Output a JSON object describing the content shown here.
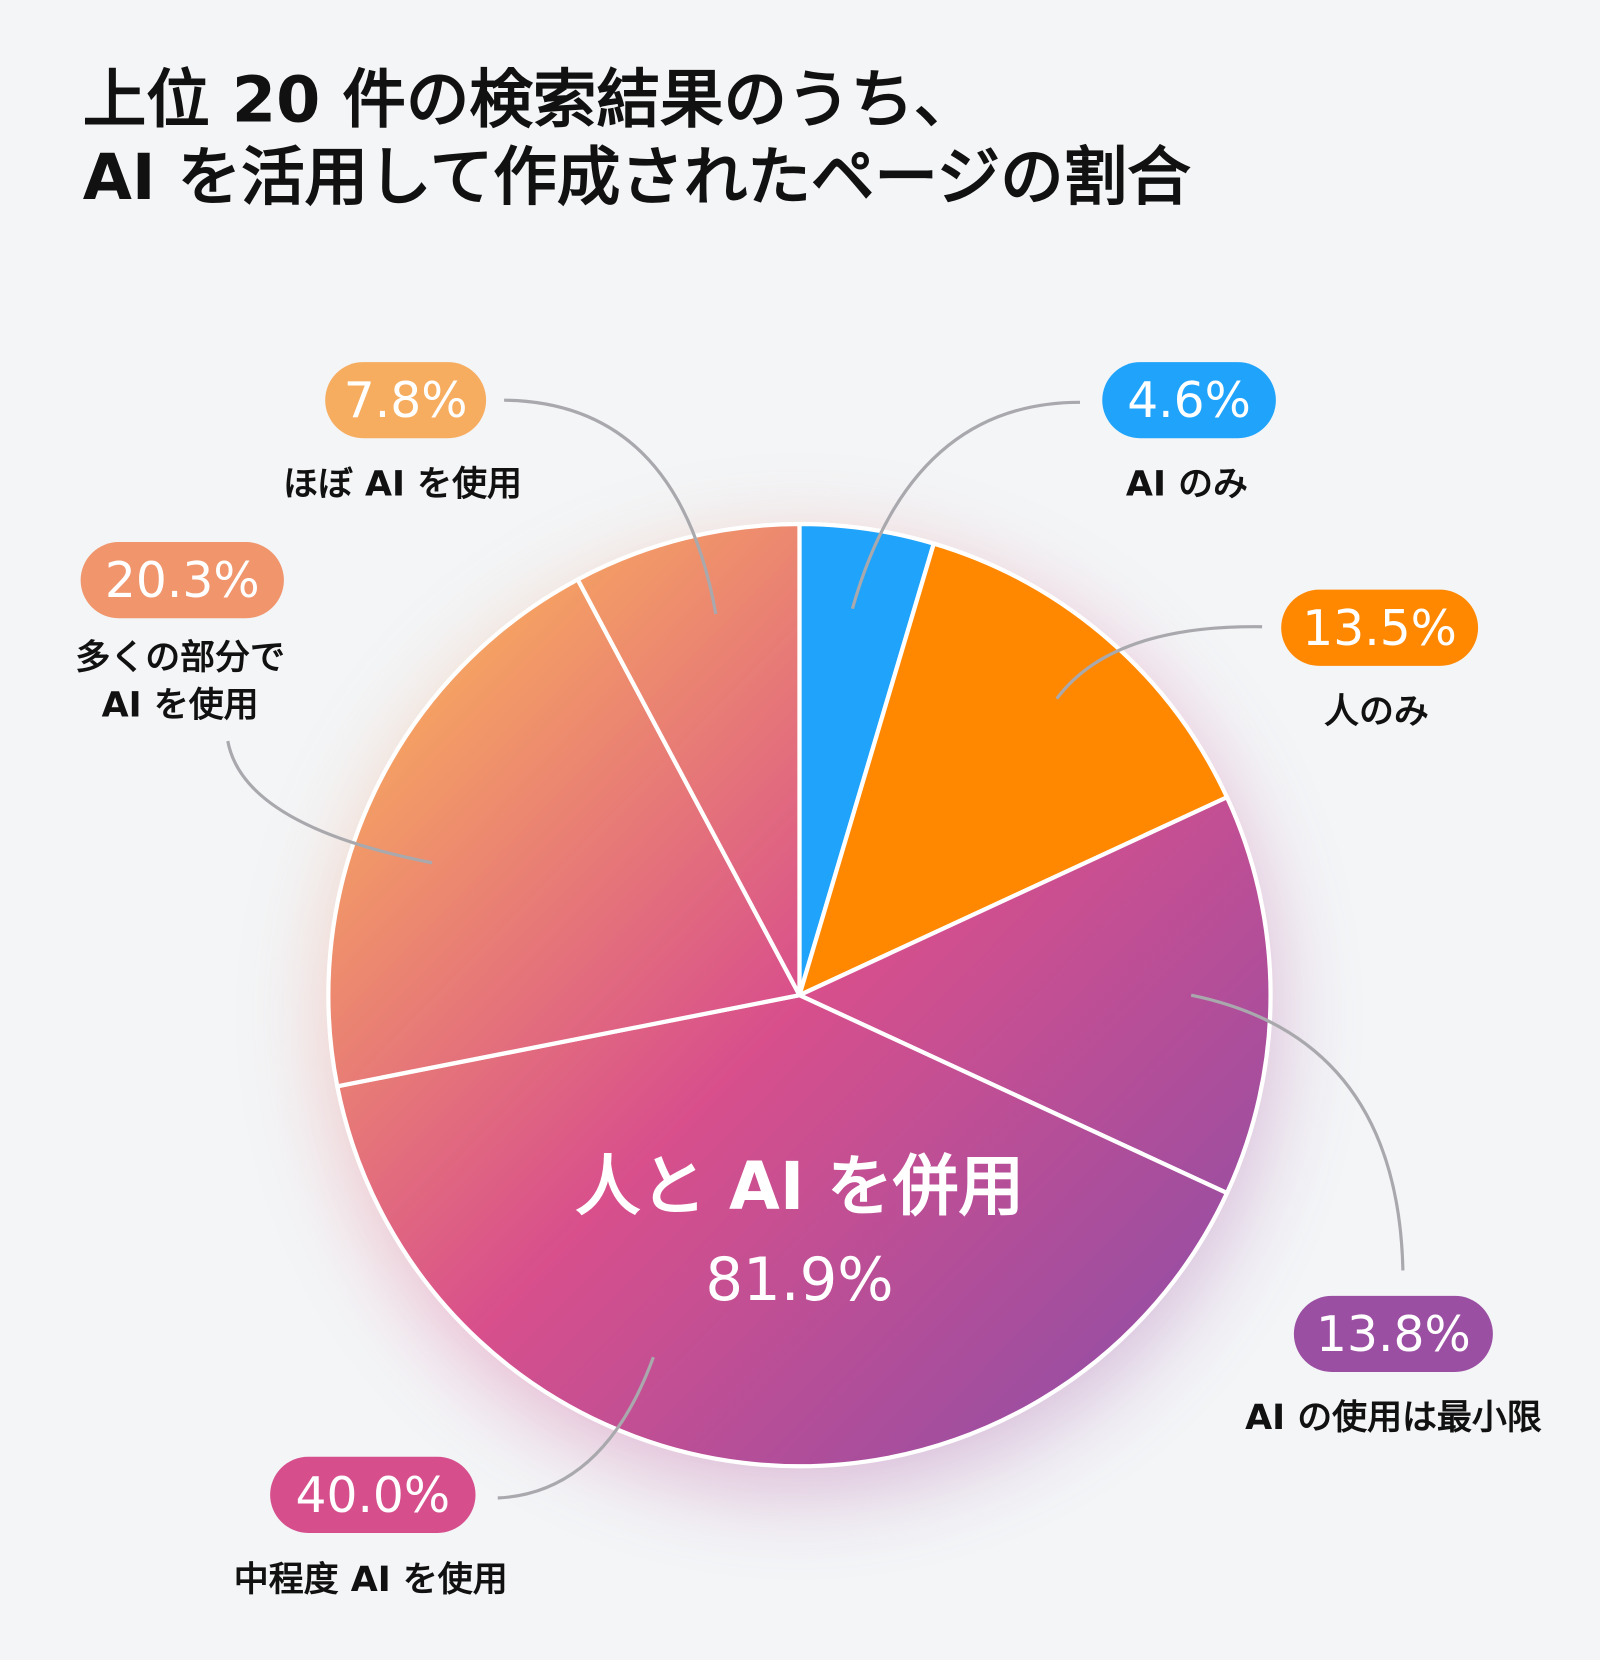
{
  "title": {
    "line1": "上位 20 件の検索結果のうち、",
    "line2": "AI を活用して作成されたページの割合"
  },
  "chart_data": {
    "type": "pie",
    "title": "上位 20 件の検索結果のうち、AI を活用して作成されたページの割合",
    "slices": [
      {
        "label": "AI のみ",
        "value": 4.6,
        "display": "4.6%",
        "color": "#1fa3fb"
      },
      {
        "label": "人のみ",
        "value": 13.5,
        "display": "13.5%",
        "color": "#ff8800"
      },
      {
        "label": "AI の使用は最小限",
        "value": 13.8,
        "display": "13.8%",
        "color": "#9b4fa3"
      },
      {
        "label": "中程度 AI を使用",
        "value": 40.0,
        "display": "40.0%",
        "color": "#d64f8c"
      },
      {
        "label": "多くの部分で AI を使用",
        "label_lines": [
          "多くの部分で",
          "AI を使用"
        ],
        "value": 20.3,
        "display": "20.3%",
        "color": "#f0956c"
      },
      {
        "label": "ほぼ AI を使用",
        "value": 7.8,
        "display": "7.8%",
        "color": "#f7ad60"
      }
    ],
    "group_annotation": {
      "label": "人と AI を併用",
      "display": "81.9%",
      "value": 81.9
    },
    "gradient_colors": [
      "#fbb35a",
      "#d84f8c",
      "#8e4ea6"
    ]
  }
}
